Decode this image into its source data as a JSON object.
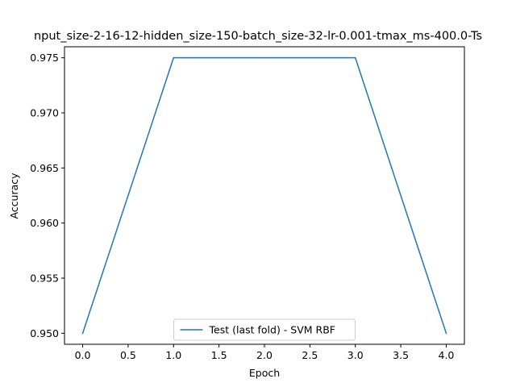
{
  "chart_data": {
    "type": "line",
    "title": "nput_size-2-16-12-hidden_size-150-batch_size-32-lr-0.001-tmax_ms-400.0-Ts",
    "xlabel": "Epoch",
    "ylabel": "Accuracy",
    "xlim": [
      -0.2,
      4.2
    ],
    "ylim": [
      0.949,
      0.976
    ],
    "xticks": [
      "0.0",
      "0.5",
      "1.0",
      "1.5",
      "2.0",
      "2.5",
      "3.0",
      "3.5",
      "4.0"
    ],
    "yticks": [
      "0.950",
      "0.955",
      "0.960",
      "0.965",
      "0.970",
      "0.975"
    ],
    "grid": false,
    "legend_position": "bottom-center",
    "series": [
      {
        "name": "Test (last fold) - SVM RBF",
        "color": "#1f77b4",
        "x": [
          0,
          1,
          2,
          3,
          4
        ],
        "y": [
          0.95,
          0.975,
          0.975,
          0.975,
          0.95
        ]
      }
    ]
  }
}
